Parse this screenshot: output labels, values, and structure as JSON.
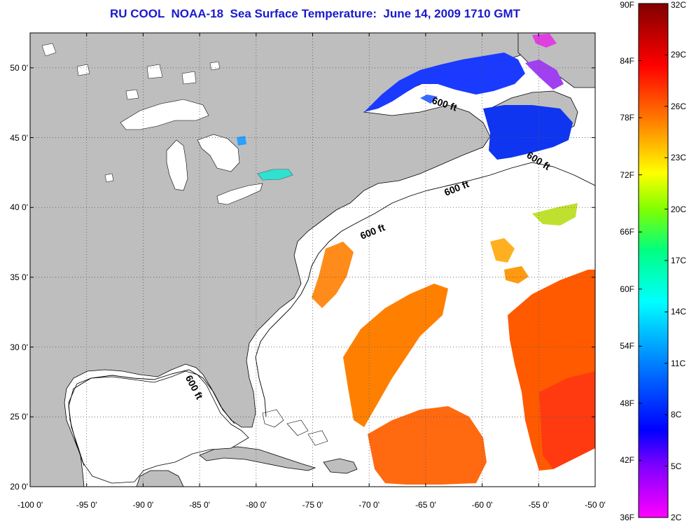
{
  "title": "RU COOL  NOAA-18  Sea Surface Temperature:  June 14, 2009 1710 GMT",
  "map": {
    "lon_range": [
      -100,
      -50
    ],
    "lat_range": [
      20,
      52.5
    ],
    "lat_labels": [
      "50 0'",
      "45 0'",
      "40 0'",
      "35 0'",
      "30 0'",
      "25 0'",
      "20 0'"
    ],
    "lon_labels": [
      "-100 0'",
      "-95 0'",
      "-90 0'",
      "-85 0'",
      "-80 0'",
      "-75 0'",
      "-70 0'",
      "-65 0'",
      "-60 0'",
      "-55 0'",
      "-50 0'"
    ],
    "depth_contour_label": "600 ft",
    "land_color": "#bebebe",
    "no_data_color": "#ffffff",
    "grid": "dotted"
  },
  "colorbar": {
    "fahrenheit_labels": [
      "90F",
      "84F",
      "78F",
      "72F",
      "66F",
      "60F",
      "54F",
      "48F",
      "42F",
      "36F"
    ],
    "celsius_labels": [
      "32C",
      "29C",
      "26C",
      "23C",
      "20C",
      "17C",
      "14C",
      "11C",
      "8C",
      "5C",
      "2C"
    ],
    "colors": [
      "#ff00ff",
      "#8000ff",
      "#0000ff",
      "#0080ff",
      "#00ffff",
      "#00ff80",
      "#80ff00",
      "#ffff00",
      "#ff8000",
      "#ff0000",
      "#800000"
    ]
  }
}
